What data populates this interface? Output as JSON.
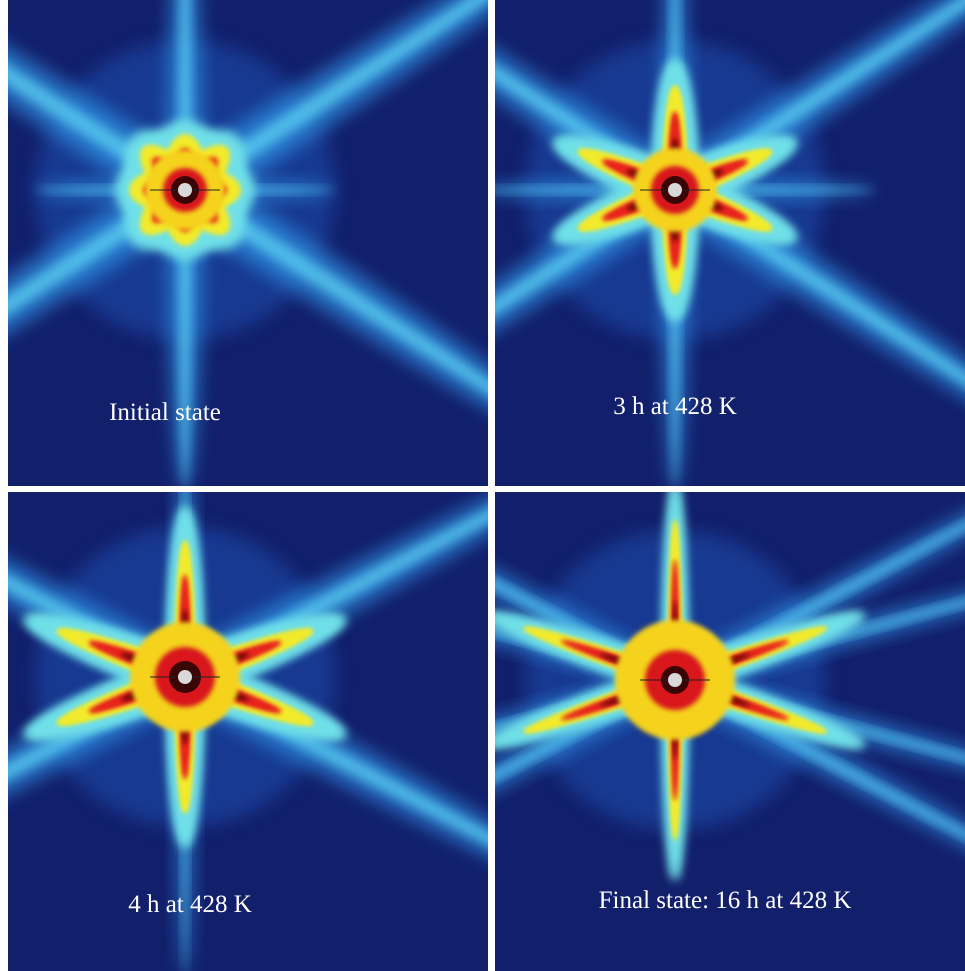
{
  "panels": [
    {
      "label": "Initial state"
    },
    {
      "label": "3 h at 428 K"
    },
    {
      "label": "4 h at 428 K"
    },
    {
      "label": "Final state: 16 h at 428 K"
    }
  ]
}
